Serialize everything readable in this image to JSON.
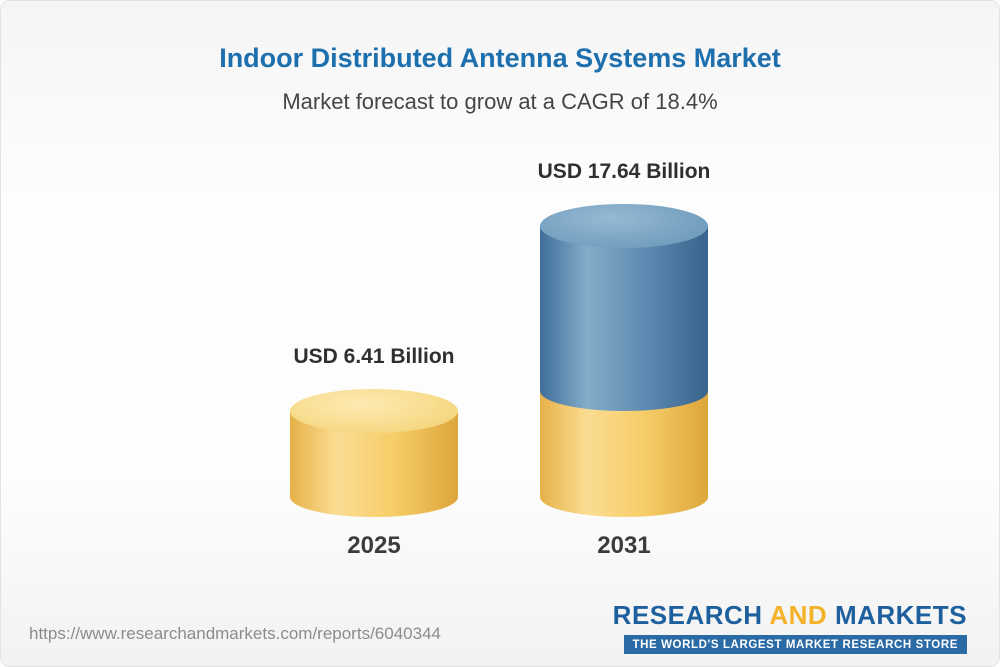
{
  "chart_data": {
    "type": "bar",
    "title": "Indoor Distributed Antenna Systems Market",
    "subtitle": "Market forecast to grow at a CAGR of 18.4%",
    "categories": [
      "2025",
      "2031"
    ],
    "values": [
      6.41,
      17.64
    ],
    "value_labels": [
      "USD 6.41 Billion",
      "USD 17.64 Billion"
    ],
    "unit": "USD Billion",
    "cagr_percent": 18.4,
    "grid": false,
    "legend_position": "none",
    "colors": {
      "bar_2025": "#f6cd67",
      "bar_2031_top_segment": "#5e8bb1",
      "bar_2031_bottom_segment": "#f6cd67",
      "title": "#1d6fad"
    }
  },
  "footer": {
    "url": "https://www.researchandmarkets.com/reports/6040344",
    "logo": {
      "research": "RESEARCH",
      "and": "AND",
      "markets": "MARKETS",
      "tagline": "THE WORLD'S LARGEST MARKET RESEARCH STORE"
    }
  }
}
